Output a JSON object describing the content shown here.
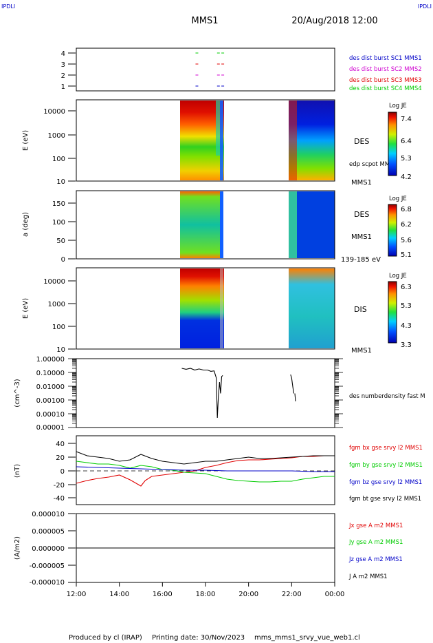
{
  "corner_left": "IPDLI",
  "corner_right": "IPDLI",
  "header": {
    "spacecraft": "MMS1",
    "datetime": "20/Aug/2018 12:00"
  },
  "footer": {
    "credit": "Produced by cl (IRAP)",
    "printing_date": "Printing date: 30/Nov/2023",
    "file": "mms_mms1_srvy_vue_web1.cl"
  },
  "time_axis": {
    "labels": [
      "12:00",
      "14:00",
      "16:00",
      "18:00",
      "20:00",
      "22:00",
      "00:00"
    ]
  },
  "colors": {
    "black": "#000000",
    "red": "#e00000",
    "green": "#00cc00",
    "blue": "#0000c8",
    "magenta": "#d000d0"
  },
  "chart_data": [
    {
      "type": "scatter",
      "title": "burst availability",
      "xlabel": "",
      "ylabel": "",
      "yticks": [
        "1",
        "2",
        "3",
        "4"
      ],
      "legend": [
        {
          "text": "des dist burst SC1 MMS1",
          "color": "#0000c8"
        },
        {
          "text": "des dist burst SC2 MMS2",
          "color": "#d000d0"
        },
        {
          "text": "des dist burst SC3 MMS3",
          "color": "#e00000"
        },
        {
          "text": "des dist burst SC4 MMS4",
          "color": "#00cc00"
        }
      ],
      "series": [
        {
          "sc": 1,
          "color": "#0000c8",
          "x_hours": [
            17.6,
            18.6,
            18.8
          ]
        },
        {
          "sc": 2,
          "color": "#d000d0",
          "x_hours": [
            17.6,
            18.6,
            18.8
          ]
        },
        {
          "sc": 3,
          "color": "#e00000",
          "x_hours": [
            17.6,
            18.6,
            18.8
          ]
        },
        {
          "sc": 4,
          "color": "#00cc00",
          "x_hours": [
            17.6,
            18.6,
            18.8
          ]
        }
      ]
    },
    {
      "type": "heatmap",
      "ylabel": "E (eV)",
      "yscale": "log",
      "yticks": [
        "10",
        "100",
        "1000",
        "10000"
      ],
      "ylim": [
        10,
        30000
      ],
      "right_labels": [
        "DES",
        "edp scpot MMS1",
        "MMS1"
      ],
      "colorbar": {
        "title": "Log JE",
        "ticks": [
          "7.4",
          "6.4",
          "5.3",
          "4.2"
        ],
        "range": [
          4.2,
          7.4
        ]
      },
      "data_intervals_hours": [
        [
          16.9,
          18.85
        ],
        [
          21.9,
          24.0
        ]
      ]
    },
    {
      "type": "heatmap",
      "ylabel": "a (deg)",
      "yticks": [
        "0",
        "50",
        "100",
        "150"
      ],
      "ylim": [
        0,
        180
      ],
      "right_labels": [
        "DES",
        "MMS1",
        "139-185 eV"
      ],
      "colorbar": {
        "title": "Log JE",
        "ticks": [
          "6.8",
          "6.2",
          "5.6",
          "5.1"
        ],
        "range": [
          5.1,
          6.8
        ]
      },
      "data_intervals_hours": [
        [
          16.9,
          18.85
        ],
        [
          21.9,
          24.0
        ]
      ]
    },
    {
      "type": "heatmap",
      "ylabel": "E (eV)",
      "yscale": "log",
      "yticks": [
        "10",
        "100",
        "1000",
        "10000"
      ],
      "ylim": [
        10,
        30000
      ],
      "right_labels": [
        "DIS",
        "MMS1"
      ],
      "colorbar": {
        "title": "Log JE",
        "ticks": [
          "6.3",
          "5.3",
          "4.3",
          "3.3"
        ],
        "range": [
          3.3,
          6.3
        ]
      },
      "data_intervals_hours": [
        [
          16.9,
          18.85
        ],
        [
          21.9,
          24.0
        ]
      ]
    },
    {
      "type": "line",
      "ylabel": "(cm^-3)",
      "yscale": "log",
      "yticks": [
        "1.00000",
        "0.10000",
        "0.01000",
        "0.00100",
        "0.00010",
        "0.00001"
      ],
      "ylim": [
        1e-05,
        1.0
      ],
      "legend": [
        {
          "text": "des numberdensity fast M",
          "color": "#000000"
        }
      ],
      "series": [
        {
          "name": "des numberdensity fast M",
          "color": "#000000",
          "segments": [
            {
              "x": [
                16.9,
                17.1,
                17.3,
                17.5,
                17.7,
                17.9,
                18.1,
                18.25,
                18.4,
                18.5,
                18.55,
                18.6,
                18.65,
                18.7,
                18.75,
                18.8
              ],
              "y": [
                0.2,
                0.17,
                0.2,
                0.15,
                0.18,
                0.15,
                0.15,
                0.12,
                0.13,
                0.04,
                5e-05,
                0.002,
                0.02,
                0.003,
                0.05,
                0.06
              ]
            },
            {
              "x": [
                21.95,
                22.0,
                22.05,
                22.1
              ],
              "y": [
                0.07,
                0.04,
                0.01,
                0.003
              ]
            },
            {
              "x": [
                22.15,
                22.18
              ],
              "y": [
                0.003,
                0.0008
              ]
            }
          ]
        }
      ]
    },
    {
      "type": "line",
      "ylabel": "(nT)",
      "yticks": [
        "40",
        "20",
        "0",
        "-20",
        "-40"
      ],
      "ylim": [
        -50,
        50
      ],
      "legend": [
        {
          "text": "fgm bx gse srvy l2 MMS1",
          "color": "#e00000"
        },
        {
          "text": "fgm by gse srvy l2 MMS1",
          "color": "#00cc00"
        },
        {
          "text": "fgm bz gse srvy l2 MMS1",
          "color": "#0000c8"
        },
        {
          "text": "fgm bt gse srvy l2 MMS1",
          "color": "#000000"
        }
      ],
      "series": [
        {
          "name": "fgm bx gse srvy l2 MMS1",
          "color": "#e00000",
          "x": [
            12,
            12.5,
            13,
            13.5,
            14,
            14.5,
            15,
            15.2,
            15.5,
            16,
            16.5,
            17,
            17.5,
            18,
            18.5,
            19,
            19.5,
            20,
            20.5,
            21,
            21.5,
            22,
            22.5,
            23,
            23.5,
            24
          ],
          "y": [
            -18,
            -14,
            -11,
            -9,
            -6,
            -13,
            -22,
            -14,
            -8,
            -6,
            -4,
            -2,
            0,
            5,
            8,
            12,
            15,
            16,
            16,
            17,
            18,
            19,
            21,
            21,
            22,
            22
          ]
        },
        {
          "name": "fgm by gse srvy l2 MMS1",
          "color": "#00cc00",
          "x": [
            12,
            12.5,
            13,
            13.5,
            14,
            14.5,
            15,
            15.5,
            16,
            16.5,
            17,
            17.5,
            18,
            18.5,
            19,
            19.5,
            20,
            20.5,
            21,
            21.5,
            22,
            22.5,
            23,
            23.5,
            24
          ],
          "y": [
            14,
            12,
            10,
            10,
            8,
            4,
            8,
            6,
            2,
            1,
            -2,
            -3,
            -4,
            -8,
            -12,
            -14,
            -15,
            -16,
            -16,
            -15,
            -15,
            -12,
            -10,
            -8,
            -8
          ]
        },
        {
          "name": "fgm bz gse srvy l2 MMS1",
          "color": "#0000c8",
          "x": [
            12,
            13,
            14,
            15,
            16,
            17,
            18,
            19,
            20,
            21,
            22,
            23,
            24
          ],
          "y": [
            6,
            5,
            4,
            3,
            2,
            1,
            1,
            0,
            0,
            0,
            0,
            -1,
            -1
          ]
        },
        {
          "name": "fgm bt gse srvy l2 MMS1",
          "color": "#000000",
          "x": [
            12,
            12.5,
            13,
            13.5,
            14,
            14.5,
            15,
            15.5,
            16,
            16.5,
            17,
            17.5,
            18,
            18.5,
            19,
            19.5,
            20,
            20.5,
            21,
            21.5,
            22,
            22.5,
            23,
            23.5,
            24
          ],
          "y": [
            28,
            22,
            20,
            18,
            14,
            16,
            24,
            18,
            14,
            12,
            10,
            12,
            14,
            14,
            16,
            18,
            20,
            18,
            18,
            19,
            20,
            21,
            22,
            22,
            22
          ]
        }
      ]
    },
    {
      "type": "line",
      "ylabel": "(A/m2)",
      "yticks": [
        "0.000010",
        "0.000005",
        "0.000000",
        "-0.000005",
        "-0.000010"
      ],
      "ylim": [
        -1e-05,
        1e-05
      ],
      "legend": [
        {
          "text": "Jx gse A m2 MMS1",
          "color": "#e00000"
        },
        {
          "text": "Jy gse A m2 MMS1",
          "color": "#00cc00"
        },
        {
          "text": "Jz gse A m2 MMS1",
          "color": "#0000c8"
        },
        {
          "text": "J A m2 MMS1",
          "color": "#000000"
        }
      ],
      "series": [
        {
          "name": "J A m2 MMS1",
          "color": "#000000",
          "x": [
            12,
            24
          ],
          "y": [
            0,
            0
          ]
        }
      ]
    }
  ]
}
